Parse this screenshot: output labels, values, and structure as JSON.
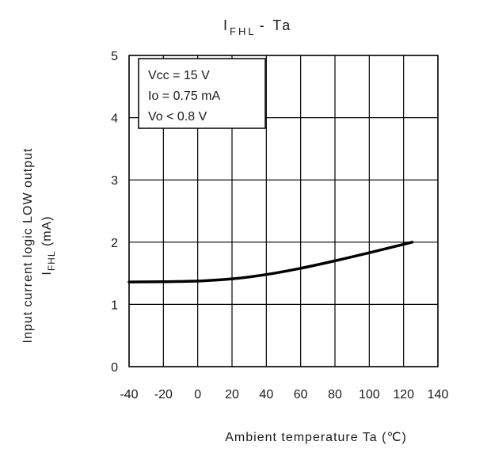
{
  "chart_data": {
    "type": "line",
    "title_main": "I",
    "title_sub": "FHL",
    "title_rest": "- Ta",
    "xlabel": "Ambient temperature Ta (℃)",
    "ylabel_line1": "Input current logic LOW output",
    "ylabel_line2_main": "I",
    "ylabel_line2_sub": "FHL",
    "ylabel_line2_rest": " (mA)",
    "xlim": [
      -40,
      140
    ],
    "ylim": [
      0,
      5
    ],
    "x_ticks": [
      -40,
      -20,
      0,
      20,
      40,
      60,
      80,
      100,
      120,
      140
    ],
    "y_ticks": [
      0,
      1,
      2,
      3,
      4,
      5
    ],
    "grid": true,
    "conditions": [
      "Vcc = 15 V",
      "Io = 0.75 mA",
      "Vo < 0.8 V"
    ],
    "legend_position": "top-left",
    "series": [
      {
        "x": [
          -40,
          -20,
          0,
          20,
          40,
          60,
          80,
          100,
          125
        ],
        "y": [
          1.36,
          1.365,
          1.375,
          1.41,
          1.48,
          1.58,
          1.7,
          1.83,
          2.0
        ]
      }
    ],
    "line_color": "#000000"
  }
}
